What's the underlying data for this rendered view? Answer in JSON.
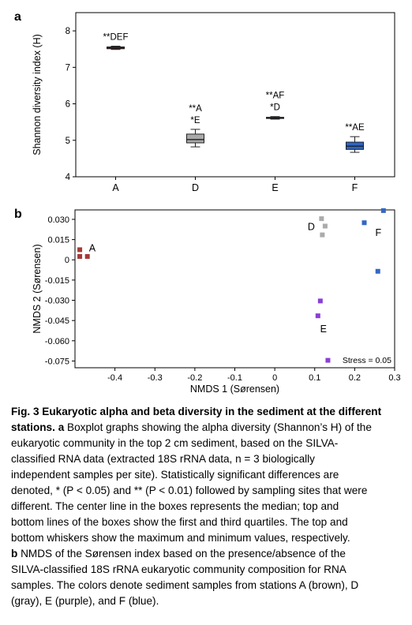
{
  "chart_data": [
    {
      "type": "box",
      "panel_label": "a",
      "ylabel": "Shannon diversity index (H)",
      "xlabel": "",
      "ylim": [
        4,
        8.5
      ],
      "yticks": [
        "4",
        "5",
        "6",
        "7",
        "8"
      ],
      "categories": [
        "A",
        "D",
        "E",
        "F"
      ],
      "boxes": [
        {
          "category": "A",
          "min": 7.49,
          "q1": 7.51,
          "median": 7.53,
          "q3": 7.56,
          "max": 7.58,
          "color": "#b5403c",
          "annotation": [
            "**DEF"
          ]
        },
        {
          "category": "D",
          "min": 4.82,
          "q1": 4.93,
          "median": 5.02,
          "q3": 5.17,
          "max": 5.3,
          "color": "#a9a9a9",
          "annotation": [
            "**A",
            "*E"
          ]
        },
        {
          "category": "E",
          "min": 5.58,
          "q1": 5.6,
          "median": 5.62,
          "q3": 5.63,
          "max": 5.65,
          "color": "#6a4bc4",
          "annotation": [
            "**AF",
            "*D"
          ]
        },
        {
          "category": "F",
          "min": 4.67,
          "q1": 4.75,
          "median": 4.84,
          "q3": 4.95,
          "max": 5.1,
          "color": "#2f65c2",
          "annotation": [
            "**AE"
          ]
        }
      ]
    },
    {
      "type": "scatter",
      "panel_label": "b",
      "xlabel": "NMDS 1 (Sørensen)",
      "ylabel": "NMDS 2 (Sørensen)",
      "xlim": [
        -0.5,
        0.3
      ],
      "ylim": [
        -0.08,
        0.037
      ],
      "xticks": [
        "-0.4",
        "-0.3",
        "-0.2",
        "-0.1",
        "0",
        "0.1",
        "0.2",
        "0.3"
      ],
      "yticks": [
        "0.030",
        "0.015",
        "0",
        "-0.015",
        "-0.030",
        "-0.045",
        "-0.060",
        "-0.075"
      ],
      "annotation": "Stress = 0.05",
      "groups": [
        {
          "label": "A",
          "color": "#a33a37",
          "points": [
            [
              -0.488,
              0.0075
            ],
            [
              -0.488,
              0.0025
            ],
            [
              -0.469,
              0.0025
            ]
          ]
        },
        {
          "label": "D",
          "color": "#ababab",
          "points": [
            [
              0.117,
              0.0305
            ],
            [
              0.126,
              0.025
            ],
            [
              0.119,
              0.0185
            ]
          ]
        },
        {
          "label": "E",
          "color": "#8a3fd6",
          "points": [
            [
              0.114,
              -0.0305
            ],
            [
              0.108,
              -0.0415
            ],
            [
              0.133,
              -0.0745
            ]
          ]
        },
        {
          "label": "F",
          "color": "#3567c5",
          "points": [
            [
              0.272,
              0.0365
            ],
            [
              0.224,
              0.0275
            ],
            [
              0.258,
              -0.0085
            ]
          ]
        }
      ]
    }
  ],
  "caption": {
    "title": "Fig. 3 Eukaryotic alpha and beta diversity in the sediment at the different stations.",
    "lines": [
      " Boxplot graphs showing the alpha diversity (Shannon’s H) of the",
      "eukaryotic community in the top 2 cm sediment, based on the SILVA-",
      "classified RNA data (extracted 18S rRNA data, n = 3 biologically",
      "independent samples per site). Statistically significant differences are",
      "denoted, * (P < 0.05) and ** (P < 0.01) followed by sampling sites that were",
      "different. The center line in the boxes represents the median; top and",
      "bottom lines of the boxes show the first and third quartiles. The top and",
      "bottom whiskers show the maximum and minimum values, respectively.",
      " NMDS of the Sørensen index based on the presence/absence of the",
      "SILVA-classified 18S rRNA eukaryotic community composition for RNA",
      "samples. The colors denote sediment samples from stations A (brown), D",
      "(gray), E (purple), and F (blue)."
    ],
    "label_a": "a",
    "label_b": "b"
  }
}
